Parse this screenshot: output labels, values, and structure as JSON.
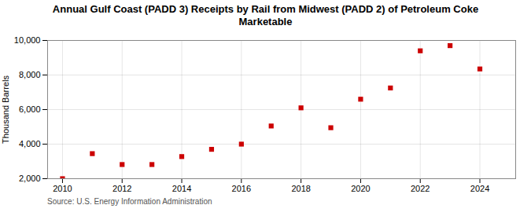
{
  "chart_data": {
    "type": "scatter",
    "title": "Annual Gulf Coast (PADD 3) Receipts by Rail from Midwest (PADD 2) of Petroleum Coke\nMarketable",
    "ylabel": "Thousand Barrels",
    "source": "Source: U.S. Energy Information Administration",
    "x": [
      2010,
      2011,
      2012,
      2013,
      2014,
      2015,
      2016,
      2017,
      2018,
      2019,
      2020,
      2021,
      2022,
      2023,
      2024
    ],
    "values": [
      2000,
      3450,
      2820,
      2820,
      3280,
      3700,
      4000,
      5050,
      6100,
      4950,
      6600,
      7250,
      9400,
      9700,
      8350
    ],
    "color": "#cc0000",
    "marker": "square",
    "xlim": [
      2009.5,
      2025.2
    ],
    "xticks": [
      2010,
      2012,
      2014,
      2016,
      2018,
      2020,
      2022,
      2024
    ],
    "ylim": [
      2000,
      10000
    ],
    "yticks": [
      {
        "value": 2000,
        "label": "2,000"
      },
      {
        "value": 4000,
        "label": "4,000"
      },
      {
        "value": 6000,
        "label": "6,000"
      },
      {
        "value": 8000,
        "label": "8,000"
      },
      {
        "value": 10000,
        "label": "10,000"
      }
    ],
    "grid": true
  }
}
